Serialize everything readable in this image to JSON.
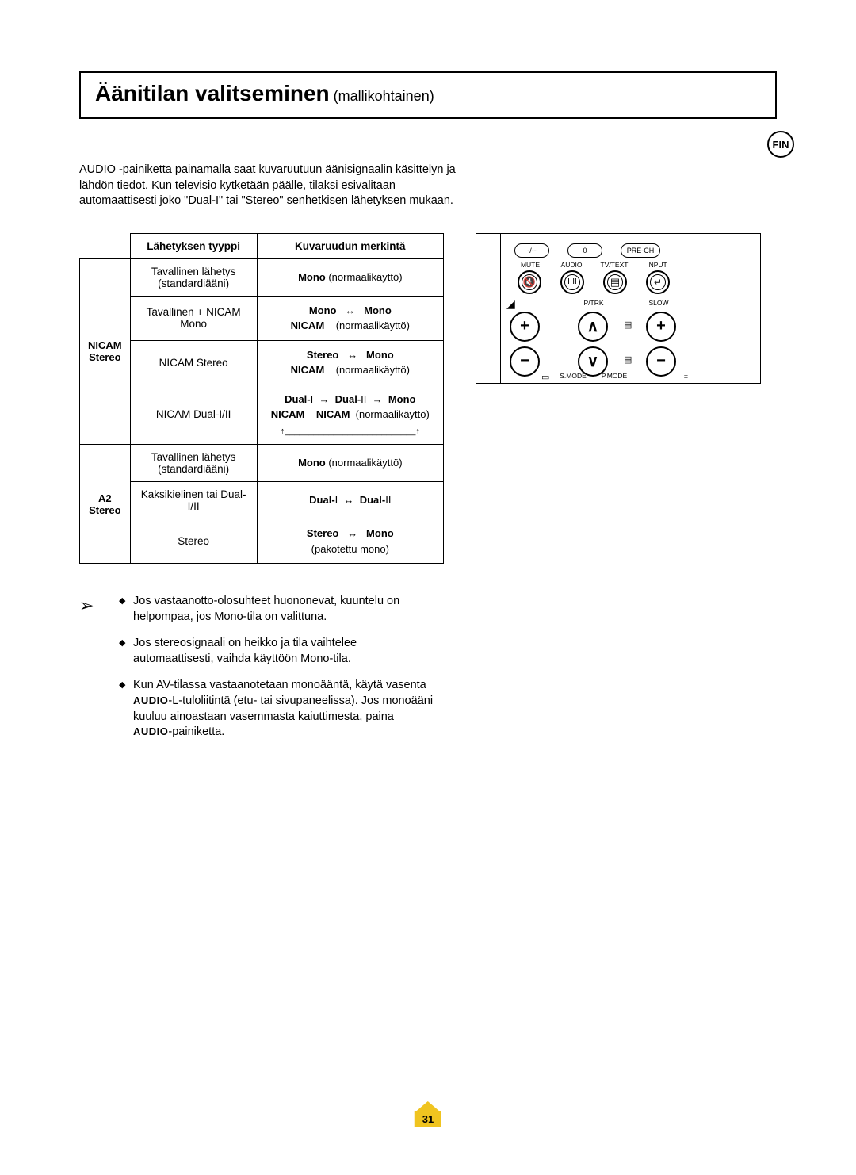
{
  "lang_badge": "FIN",
  "title": {
    "main": "Äänitilan valitseminen",
    "sub": " (mallikohtainen)"
  },
  "intro": "AUDIO -painiketta painamalla saat kuvaruutuun äänisignaalin käsittelyn ja lähdön tiedot. Kun televisio kytketään päälle, tilaksi esivalitaan automaattisesti joko \"Dual-I\" tai \"Stereo\" senhetkisen lähetyksen mukaan.",
  "table": {
    "headers": {
      "type": "Lähetyksen tyyppi",
      "display": "Kuvaruudun merkintä"
    },
    "groups": [
      {
        "label": "NICAM\nStereo",
        "rows": [
          {
            "type": "Tavallinen lähetys\n(standardiääni)",
            "display": "<span class='b'>Mono</span> (normaalikäyttö)"
          },
          {
            "type": "Tavallinen + NICAM\nMono",
            "display": "<span class='b'>Mono</span>&nbsp;&nbsp;&nbsp;↔&nbsp;&nbsp;&nbsp;<span class='b'>Mono</span><br><span class='b'>NICAM</span>&nbsp;&nbsp;&nbsp;&nbsp;(normaalikäyttö)"
          },
          {
            "type": "NICAM Stereo",
            "display": "<span class='b'>Stereo</span>&nbsp;&nbsp;&nbsp;↔&nbsp;&nbsp;&nbsp;<span class='b'>Mono</span><br><span class='b'>NICAM</span>&nbsp;&nbsp;&nbsp;&nbsp;(normaalikäyttö)"
          },
          {
            "type": "NICAM Dual-I/II",
            "display": "<span class='b'>Dual-</span>I&nbsp;&nbsp;→&nbsp;&nbsp;<span class='b'>Dual-</span>II&nbsp;&nbsp;→&nbsp;&nbsp;<span class='b'>Mono</span><br><span class='b'>NICAM</span>&nbsp;&nbsp;&nbsp;&nbsp;<span class='b'>NICAM</span>&nbsp;&nbsp;(normaalikäyttö)<br><span style='font-size:11px'>↑___________________________↑</span>"
          }
        ]
      },
      {
        "label": "A2\nStereo",
        "rows": [
          {
            "type": "Tavallinen lähetys\n(standardiääni)",
            "display": "<span class='b'>Mono</span> (normaalikäyttö)"
          },
          {
            "type": "Kaksikielinen tai Dual-I/II",
            "display": "<span class='b'>Dual-</span>I &nbsp;↔&nbsp; <span class='b'>Dual-</span>II"
          },
          {
            "type": "Stereo",
            "display": "<span class='b'>Stereo</span>&nbsp;&nbsp;&nbsp;↔&nbsp;&nbsp;&nbsp;<span class='b'>Mono</span><br>(pakotettu mono)"
          }
        ]
      }
    ]
  },
  "notes": [
    "Jos vastaanotto-olosuhteet huononevat, kuuntelu on helpompaa, jos Mono-tila on valittuna.",
    "Jos stereosignaali on heikko ja tila vaihtelee automaattisesti, vaihda käyttöön Mono-tila.",
    "Kun AV-tilassa vastaanotetaan monoääntä, käytä vasenta <span class='sc'>AUDIO</span>-L-tuloliitintä (etu- tai sivupaneelissa). Jos monoääni kuuluu ainoastaan vasemmasta kaiuttimesta, paina <span class='sc'>AUDIO</span>-painiketta."
  ],
  "remote": {
    "labels": {
      "mute": "MUTE",
      "audio": "AUDIO",
      "tvtext": "TV/TEXT",
      "input": "INPUT",
      "ptrk": "P/TRK",
      "slow": "SLOW",
      "smode": "S.MODE",
      "pmode": "P.MODE",
      "prech": "PRE-CH",
      "zero": "0",
      "dash": "-/--"
    }
  },
  "page_number": "31",
  "colors": {
    "accent": "#f0c420",
    "border": "#000000",
    "text": "#000000",
    "bg": "#ffffff"
  }
}
